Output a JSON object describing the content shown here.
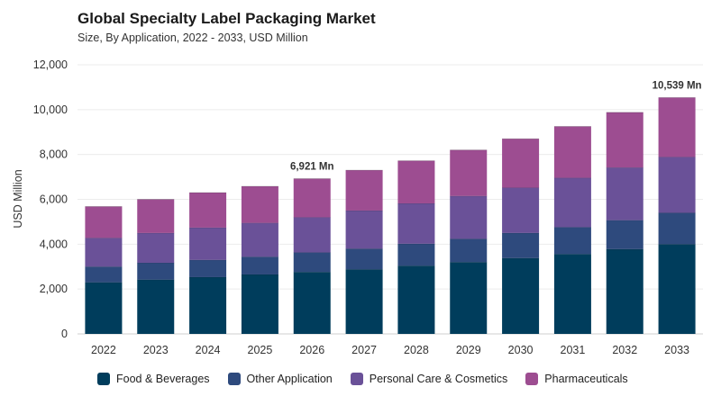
{
  "title": "Global Specialty Label Packaging Market",
  "subtitle": "Size, By Application, 2022 - 2033, USD Million",
  "chart_data": {
    "type": "bar",
    "stacked": true,
    "title": "Global Specialty Label Packaging Market",
    "subtitle": "Size, By Application, 2022 - 2033, USD Million",
    "xlabel": "",
    "ylabel": "USD Million",
    "ylim": [
      0,
      12000
    ],
    "yticks": [
      "0",
      "2,000",
      "4,000",
      "6,000",
      "8,000",
      "10,000",
      "12,000"
    ],
    "grid": true,
    "legend_position": "bottom",
    "categories": [
      "2022",
      "2023",
      "2024",
      "2025",
      "2026",
      "2027",
      "2028",
      "2029",
      "2030",
      "2031",
      "2032",
      "2033"
    ],
    "series": [
      {
        "name": "Food & Beverages",
        "color": "#003d5c",
        "values": [
          2300,
          2420,
          2530,
          2650,
          2760,
          2880,
          3040,
          3200,
          3380,
          3560,
          3780,
          4000
        ]
      },
      {
        "name": "Other Application",
        "color": "#2e4a7d",
        "values": [
          700,
          750,
          770,
          790,
          870,
          920,
          980,
          1040,
          1120,
          1200,
          1290,
          1400
        ]
      },
      {
        "name": "Personal Care & Cosmetics",
        "color": "#6a5198",
        "values": [
          1280,
          1330,
          1440,
          1510,
          1570,
          1700,
          1800,
          1910,
          2020,
          2200,
          2350,
          2490
        ]
      },
      {
        "name": "Pharmaceuticals",
        "color": "#9d4d91",
        "values": [
          1400,
          1500,
          1560,
          1630,
          1721,
          1800,
          1900,
          2050,
          2180,
          2290,
          2460,
          2649
        ]
      }
    ],
    "annotations": [
      {
        "category": "2026",
        "text": "6,921 Mn"
      },
      {
        "category": "2033",
        "text": "10,539 Mn"
      }
    ]
  }
}
